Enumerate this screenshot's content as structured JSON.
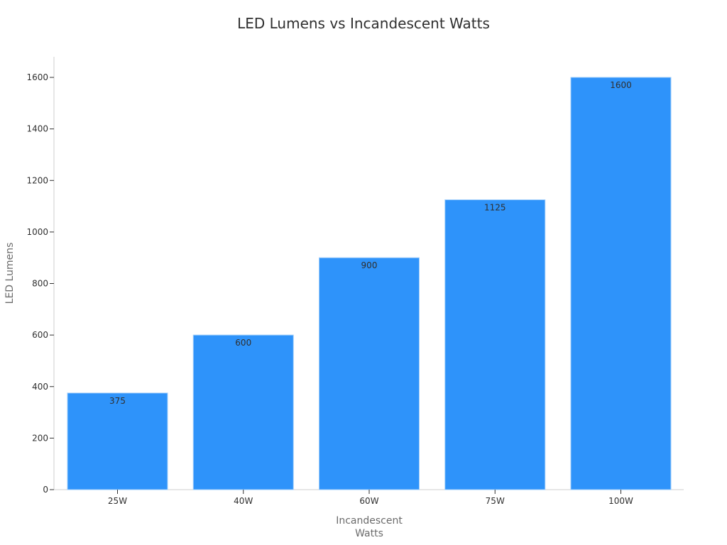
{
  "chart_data": {
    "type": "bar",
    "title": "LED Lumens vs Incandescent Watts",
    "xlabel": "Incandescent\nWatts",
    "ylabel": "LED Lumens",
    "categories": [
      "25W",
      "40W",
      "60W",
      "75W",
      "100W"
    ],
    "values": [
      375,
      600,
      900,
      1125,
      1600
    ],
    "ylim": [
      0,
      1680
    ],
    "yticks": [
      0,
      200,
      400,
      600,
      800,
      1000,
      1200,
      1400,
      1600
    ],
    "grid": false,
    "legend": "none",
    "bar_color": "#2e93fa",
    "axis_color": "#cfcfcf"
  }
}
